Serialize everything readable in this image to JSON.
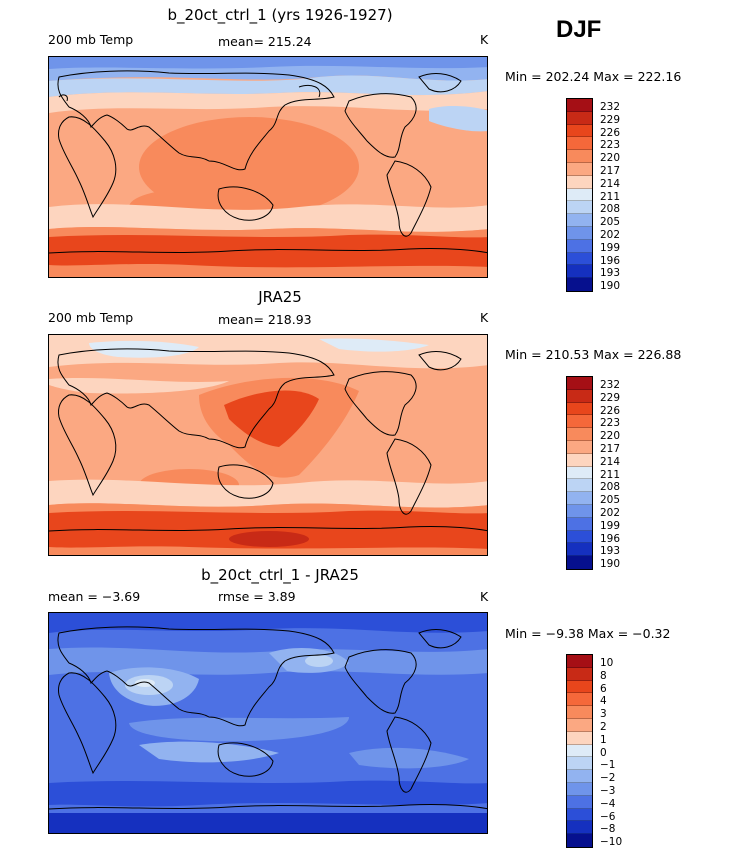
{
  "season": "DJF",
  "panels": [
    {
      "title": "b_20ct_ctrl_1 (yrs 1926-1927)",
      "left_label": "200 mb Temp",
      "center_label": "mean= 215.24",
      "units": "K",
      "minmax": "Min = 202.24 Max = 222.16",
      "levels": [
        "232",
        "229",
        "226",
        "223",
        "220",
        "217",
        "214",
        "211",
        "208",
        "205",
        "202",
        "199",
        "196",
        "193",
        "190"
      ]
    },
    {
      "title": "JRA25",
      "left_label": "200 mb Temp",
      "center_label": "mean= 218.93",
      "units": "K",
      "minmax": "Min = 210.53 Max = 226.88",
      "levels": [
        "232",
        "229",
        "226",
        "223",
        "220",
        "217",
        "214",
        "211",
        "208",
        "205",
        "202",
        "199",
        "196",
        "193",
        "190"
      ]
    },
    {
      "title": "b_20ct_ctrl_1 - JRA25",
      "left_label": "mean =  −3.69",
      "center_label": "rmse =   3.89",
      "units": "K",
      "minmax": "Min =  −9.38 Max =  −0.32",
      "levels": [
        "10",
        "8",
        "6",
        "4",
        "3",
        "2",
        "1",
        "0",
        "−1",
        "−2",
        "−3",
        "−4",
        "−6",
        "−8",
        "−10"
      ]
    }
  ],
  "colorbar_colors": [
    "#a50f15",
    "#c82a16",
    "#e8461c",
    "#f5683a",
    "#f88a5c",
    "#fba882",
    "#fdd5bf",
    "#deebf7",
    "#bcd4f4",
    "#92b3f0",
    "#6f94ea",
    "#4d71e4",
    "#2c4fd8",
    "#1530bf",
    "#06108e"
  ],
  "colors": {
    "warm_dark": "#e8461c",
    "warm": "#f88a5c",
    "warm_light": "#fba882",
    "warm_pale": "#fdd5bf",
    "cold_pale": "#deebf7",
    "cold_light": "#bcd4f4",
    "cold": "#92b3f0",
    "cold_mid": "#6f94ea",
    "blue": "#4d71e4",
    "blue_dark": "#2c4fd8"
  }
}
